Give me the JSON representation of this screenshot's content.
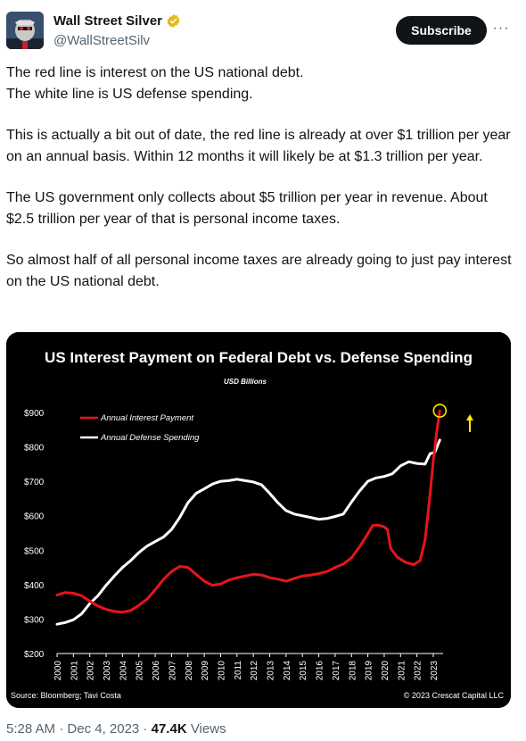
{
  "author": {
    "display_name": "Wall Street Silver",
    "handle": "@WallStreetSilv",
    "verified_icon": "gold-verified-badge-icon",
    "avatar_icon": "avatar-icon"
  },
  "actions": {
    "subscribe_label": "Subscribe",
    "more_label": "···"
  },
  "tweet": {
    "paragraphs": [
      "The red line is interest on the US national debt.\nThe white line is US defense spending.",
      "This is actually a bit out of date, the red line is already at over $1 trillion per year on an annual basis. Within 12 months it will likely be at $1.3 trillion per year.",
      "The US government only collects about $5 trillion per year in revenue. About $2.5 trillion per year of that is personal income taxes.",
      "So almost half of all personal income taxes are already going to just pay interest on the US national debt."
    ]
  },
  "meta": {
    "time": "5:28 AM",
    "separator1": " · ",
    "date": "Dec 4, 2023",
    "separator2": " · ",
    "views_count": "47.4K",
    "views_label": " Views"
  },
  "chart_data": {
    "type": "line",
    "title": "US Interest Payment on Federal Debt vs. Defense Spending",
    "subtitle": "USD Billions",
    "source": "Source: Bloomberg; Tavi Costa",
    "copyright": "© 2023 Crescat Capital LLC",
    "x_ticks": [
      "2000",
      "2001",
      "2002",
      "2003",
      "2004",
      "2005",
      "2006",
      "2007",
      "2008",
      "2009",
      "2010",
      "2011",
      "2012",
      "2013",
      "2014",
      "2015",
      "2016",
      "2017",
      "2018",
      "2019",
      "2020",
      "2021",
      "2022",
      "2023"
    ],
    "y_ticks": [
      "$200",
      "$300",
      "$400",
      "$500",
      "$600",
      "$700",
      "$800",
      "$900"
    ],
    "ylim": [
      200,
      900
    ],
    "xlim": [
      2000,
      2023.6
    ],
    "grid": false,
    "legend": "top-left",
    "background": "#000000",
    "series": [
      {
        "name": "Annual Interest Payment",
        "color": "#e8141b",
        "points": [
          [
            2000.0,
            370
          ],
          [
            2000.5,
            377
          ],
          [
            2001.0,
            375
          ],
          [
            2001.5,
            368
          ],
          [
            2002.0,
            352
          ],
          [
            2002.5,
            338
          ],
          [
            2003.0,
            328
          ],
          [
            2003.5,
            322
          ],
          [
            2004.0,
            320
          ],
          [
            2004.5,
            325
          ],
          [
            2005.0,
            340
          ],
          [
            2005.5,
            358
          ],
          [
            2006.0,
            385
          ],
          [
            2006.5,
            415
          ],
          [
            2007.0,
            438
          ],
          [
            2007.5,
            453
          ],
          [
            2008.0,
            450
          ],
          [
            2008.5,
            430
          ],
          [
            2009.0,
            410
          ],
          [
            2009.5,
            398
          ],
          [
            2010.0,
            402
          ],
          [
            2010.5,
            413
          ],
          [
            2011.0,
            420
          ],
          [
            2011.5,
            425
          ],
          [
            2012.0,
            430
          ],
          [
            2012.5,
            428
          ],
          [
            2013.0,
            420
          ],
          [
            2013.5,
            416
          ],
          [
            2014.0,
            410
          ],
          [
            2014.5,
            418
          ],
          [
            2015.0,
            425
          ],
          [
            2015.5,
            428
          ],
          [
            2016.0,
            432
          ],
          [
            2016.5,
            438
          ],
          [
            2017.0,
            450
          ],
          [
            2017.5,
            460
          ],
          [
            2018.0,
            478
          ],
          [
            2018.5,
            510
          ],
          [
            2019.0,
            548
          ],
          [
            2019.3,
            572
          ],
          [
            2019.6,
            573
          ],
          [
            2020.0,
            568
          ],
          [
            2020.2,
            560
          ],
          [
            2020.4,
            505
          ],
          [
            2020.8,
            480
          ],
          [
            2021.3,
            465
          ],
          [
            2021.8,
            458
          ],
          [
            2022.2,
            470
          ],
          [
            2022.5,
            530
          ],
          [
            2022.8,
            660
          ],
          [
            2023.0,
            760
          ],
          [
            2023.2,
            840
          ],
          [
            2023.4,
            905
          ]
        ]
      },
      {
        "name": "Annual Defense Spending",
        "color": "#ffffff",
        "points": [
          [
            2000.0,
            285
          ],
          [
            2000.5,
            290
          ],
          [
            2001.0,
            298
          ],
          [
            2001.5,
            315
          ],
          [
            2002.0,
            345
          ],
          [
            2002.5,
            368
          ],
          [
            2003.0,
            398
          ],
          [
            2003.5,
            425
          ],
          [
            2004.0,
            450
          ],
          [
            2004.5,
            470
          ],
          [
            2005.0,
            493
          ],
          [
            2005.5,
            512
          ],
          [
            2006.0,
            525
          ],
          [
            2006.5,
            538
          ],
          [
            2007.0,
            560
          ],
          [
            2007.5,
            595
          ],
          [
            2008.0,
            638
          ],
          [
            2008.5,
            665
          ],
          [
            2009.0,
            678
          ],
          [
            2009.5,
            692
          ],
          [
            2010.0,
            700
          ],
          [
            2010.5,
            702
          ],
          [
            2011.0,
            706
          ],
          [
            2011.5,
            702
          ],
          [
            2012.0,
            698
          ],
          [
            2012.5,
            690
          ],
          [
            2013.0,
            665
          ],
          [
            2013.5,
            638
          ],
          [
            2014.0,
            615
          ],
          [
            2014.5,
            605
          ],
          [
            2015.0,
            600
          ],
          [
            2015.5,
            595
          ],
          [
            2016.0,
            590
          ],
          [
            2016.5,
            592
          ],
          [
            2017.0,
            598
          ],
          [
            2017.5,
            605
          ],
          [
            2018.0,
            640
          ],
          [
            2018.5,
            672
          ],
          [
            2019.0,
            700
          ],
          [
            2019.5,
            710
          ],
          [
            2020.0,
            714
          ],
          [
            2020.5,
            722
          ],
          [
            2021.0,
            745
          ],
          [
            2021.5,
            757
          ],
          [
            2022.0,
            752
          ],
          [
            2022.5,
            750
          ],
          [
            2022.8,
            780
          ],
          [
            2023.1,
            785
          ],
          [
            2023.4,
            820
          ]
        ]
      }
    ],
    "annotations": [
      {
        "type": "circle",
        "color": "#ffec00",
        "x": 2023.4,
        "y": 905
      },
      {
        "type": "arrow-up",
        "color": "#ffec00"
      }
    ]
  }
}
